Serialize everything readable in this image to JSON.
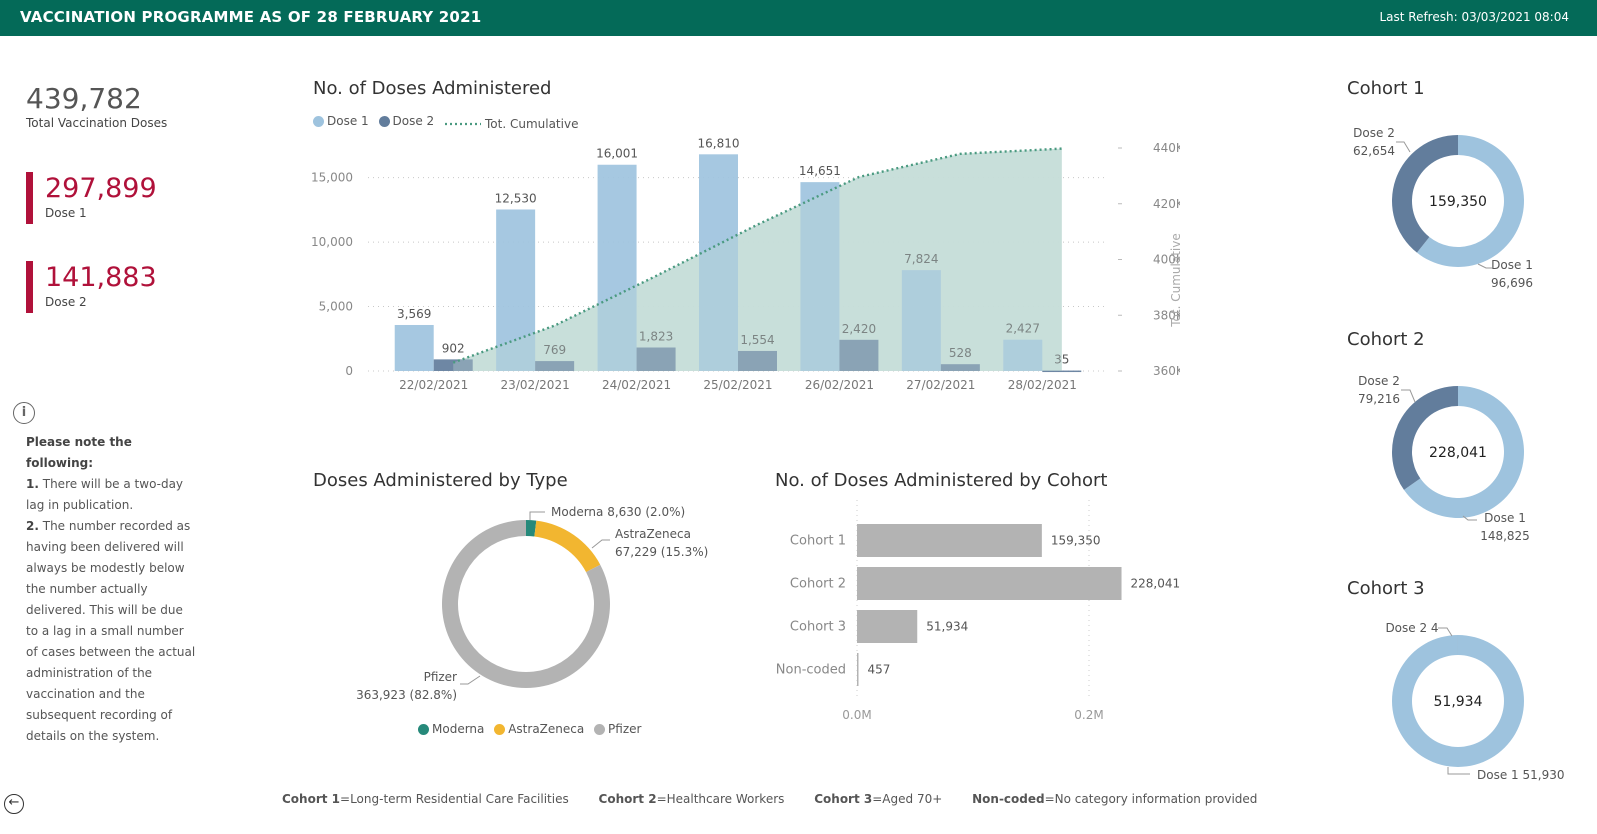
{
  "header": {
    "title": "VACCINATION PROGRAMME AS OF 28 FEBRUARY 2021",
    "refresh": "Last Refresh: 03/03/2021 08:04"
  },
  "kpis": {
    "total": {
      "value": "439,782",
      "label": "Total Vaccination Doses"
    },
    "dose1": {
      "value": "297,899",
      "label": "Dose 1"
    },
    "dose2": {
      "value": "141,883",
      "label": "Dose 2"
    }
  },
  "note": {
    "heading": "Please note the following:",
    "point1_num": "1.",
    "point1": "There will be a two-day lag in publication.",
    "point2_num": "2.",
    "point2": "The number recorded as having been delivered will always be modestly below the number actually delivered.  This will be due to a lag in a small number of cases between the actual administration of the vaccination and the subsequent recording of details on the system."
  },
  "icons": {
    "info": "info-icon",
    "back": "back-arrow-icon"
  },
  "colors": {
    "header_bg": "#046a58",
    "kpi_accent": "#b0113a",
    "dose1": "#9ec3de",
    "dose2": "#627d9c",
    "cumulative_line": "#4a9a80",
    "cumulative_area": "#c6ded9",
    "moderna": "#26897a",
    "astrazeneca": "#f2b630",
    "pfizer": "#b3b3b3",
    "cohort_bar": "#b3b3b3"
  },
  "chart_data": [
    {
      "id": "doses-administered",
      "type": "bar",
      "title": "No. of Doses Administered",
      "legend": [
        "Dose 1",
        "Dose 2",
        "Tot. Cumulative"
      ],
      "legend_position": "top-left",
      "categories": [
        "22/02/2021",
        "23/02/2021",
        "24/02/2021",
        "25/02/2021",
        "26/02/2021",
        "27/02/2021",
        "28/02/2021"
      ],
      "series": [
        {
          "name": "Dose 1",
          "values": [
            3569,
            12530,
            16001,
            16810,
            14651,
            7824,
            2427
          ],
          "labels": [
            "3,569",
            "12,530",
            "16,001",
            "16,810",
            "14,651",
            "7,824",
            "2,427"
          ]
        },
        {
          "name": "Dose 2",
          "values": [
            902,
            769,
            1823,
            1554,
            2420,
            528,
            35
          ],
          "labels": [
            "902",
            "769",
            "1,823",
            "1,554",
            "2,420",
            "528",
            "35"
          ]
        }
      ],
      "line_series": {
        "name": "Tot. Cumulative",
        "values": [
          363000,
          376300,
          394100,
          412500,
          429600,
          437900,
          439782
        ],
        "style": "dotted-area"
      },
      "y_ticks": [
        0,
        5000,
        10000,
        15000
      ],
      "y_tick_labels": [
        "0",
        "5,000",
        "10,000",
        "15,000"
      ],
      "ylim": [
        0,
        17300
      ],
      "y2label": "Tot. Cumulative",
      "y2_ticks": [
        360000,
        380000,
        400000,
        420000,
        440000
      ],
      "y2_tick_labels": [
        "360K",
        "380K",
        "400K",
        "420K",
        "440K"
      ],
      "y2lim": [
        360000,
        440000
      ],
      "grid": true
    },
    {
      "id": "doses-by-type",
      "type": "pie",
      "title": "Doses Administered by Type",
      "labels": [
        "Moderna",
        "AstraZeneca",
        "Pfizer"
      ],
      "values": [
        8630,
        67229,
        363923
      ],
      "value_labels": [
        "8,630 (2.0%)",
        "67,229 (15.3%)",
        "363,923 (82.8%)"
      ],
      "legend_position": "bottom"
    },
    {
      "id": "doses-by-cohort",
      "type": "bar",
      "orientation": "horizontal",
      "title": "No. of Doses Administered by Cohort",
      "categories": [
        "Cohort 1",
        "Cohort 2",
        "Cohort 3",
        "Non-coded"
      ],
      "values": [
        159350,
        228041,
        51934,
        457
      ],
      "labels": [
        "159,350",
        "228,041",
        "51,934",
        "457"
      ],
      "x_ticks": [
        0,
        200000
      ],
      "x_tick_labels": [
        "0.0M",
        "0.2M"
      ],
      "xlim": [
        0,
        250000
      ]
    },
    {
      "id": "cohort-1",
      "type": "pie",
      "title": "Cohort 1",
      "center_label": "159,350",
      "labels": [
        "Dose 1",
        "Dose 2"
      ],
      "values": [
        96696,
        62654
      ],
      "value_labels": [
        "96,696",
        "62,654"
      ]
    },
    {
      "id": "cohort-2",
      "type": "pie",
      "title": "Cohort 2",
      "center_label": "228,041",
      "labels": [
        "Dose 1",
        "Dose 2"
      ],
      "values": [
        148825,
        79216
      ],
      "value_labels": [
        "148,825",
        "79,216"
      ]
    },
    {
      "id": "cohort-3",
      "type": "pie",
      "title": "Cohort 3",
      "center_label": "51,934",
      "labels": [
        "Dose 1",
        "Dose 2"
      ],
      "values": [
        51930,
        4
      ],
      "value_labels": [
        "51,930",
        "4"
      ]
    }
  ],
  "footer": [
    {
      "key": "Cohort 1",
      "text": "=Long-term Residential Care Facilities"
    },
    {
      "key": "Cohort 2",
      "text": "=Healthcare Workers"
    },
    {
      "key": "Cohort 3",
      "text": "=Aged 70+"
    },
    {
      "key": "Non-coded",
      "text": "=No category information provided"
    }
  ]
}
